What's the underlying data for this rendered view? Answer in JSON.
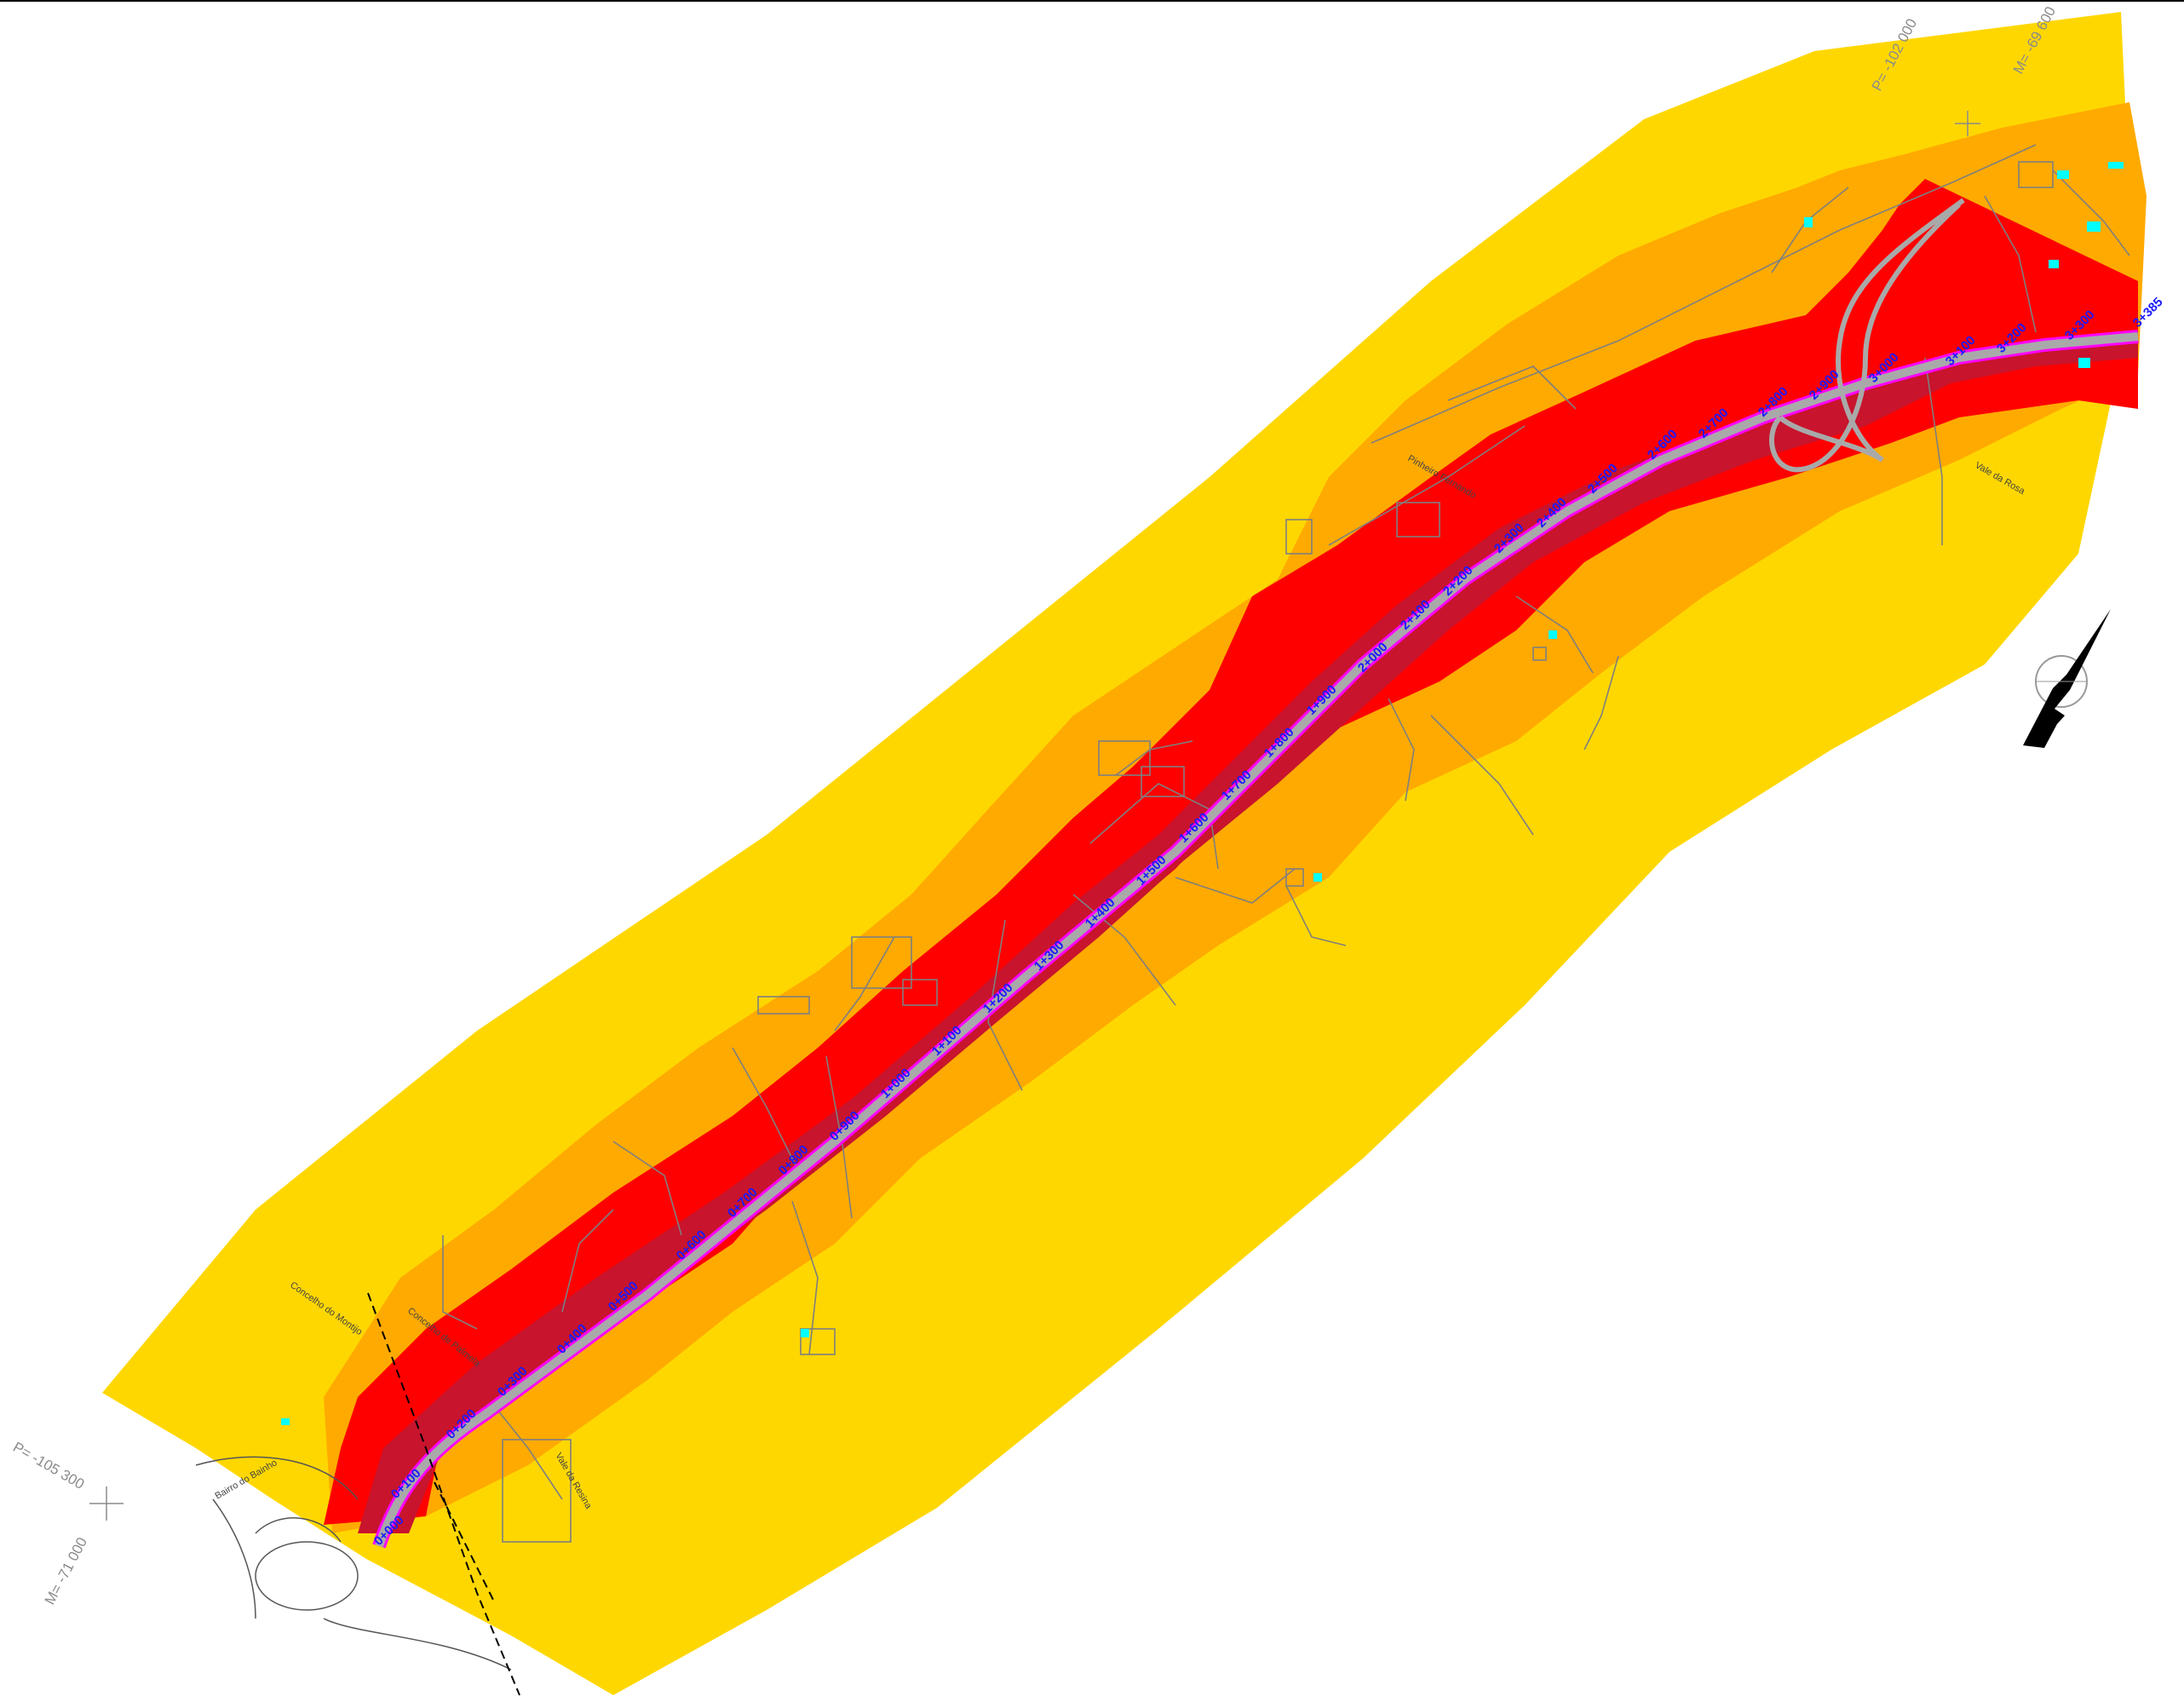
{
  "colors": {
    "background": "#ffffff",
    "zone_outer": "#ffd700",
    "zone_mid": "#ffaa00",
    "zone_inner": "#ff0000",
    "zone_core": "#c8142d",
    "road_surface": "#a9a9a9",
    "road_edge": "#ff00ff",
    "chainage_text": "#1a1aff",
    "basemap_lines": "#7f7f7f",
    "water_features": "#00ffff",
    "north_arrow": "#000000"
  },
  "icons": [
    "north-arrow-icon"
  ],
  "chainage_labels": [
    "0+000",
    "0+100",
    "0+200",
    "0+300",
    "0+400",
    "0+500",
    "0+600",
    "0+700",
    "0+800",
    "0+900",
    "1+000",
    "1+100",
    "1+200",
    "1+300",
    "1+400",
    "1+500",
    "1+600",
    "1+700",
    "1+800",
    "1+900",
    "2+000",
    "2+100",
    "2+200",
    "2+300",
    "2+400",
    "2+500",
    "2+600",
    "2+700",
    "2+800",
    "2+900",
    "3+000",
    "3+100",
    "3+200",
    "3+300",
    "3+385"
  ],
  "place_labels": [
    "Concelho do Montijo",
    "Concelho de Palmela",
    "Bairro do Bainho",
    "Vale da Resina",
    "Pinheiro Fernando",
    "Vale da Rosa"
  ],
  "coordinates": {
    "top_p": "P= -102 000",
    "top_m": "M= -69 600",
    "bottom_p": "P= -105 300",
    "bottom_m": "M= -71 000"
  }
}
